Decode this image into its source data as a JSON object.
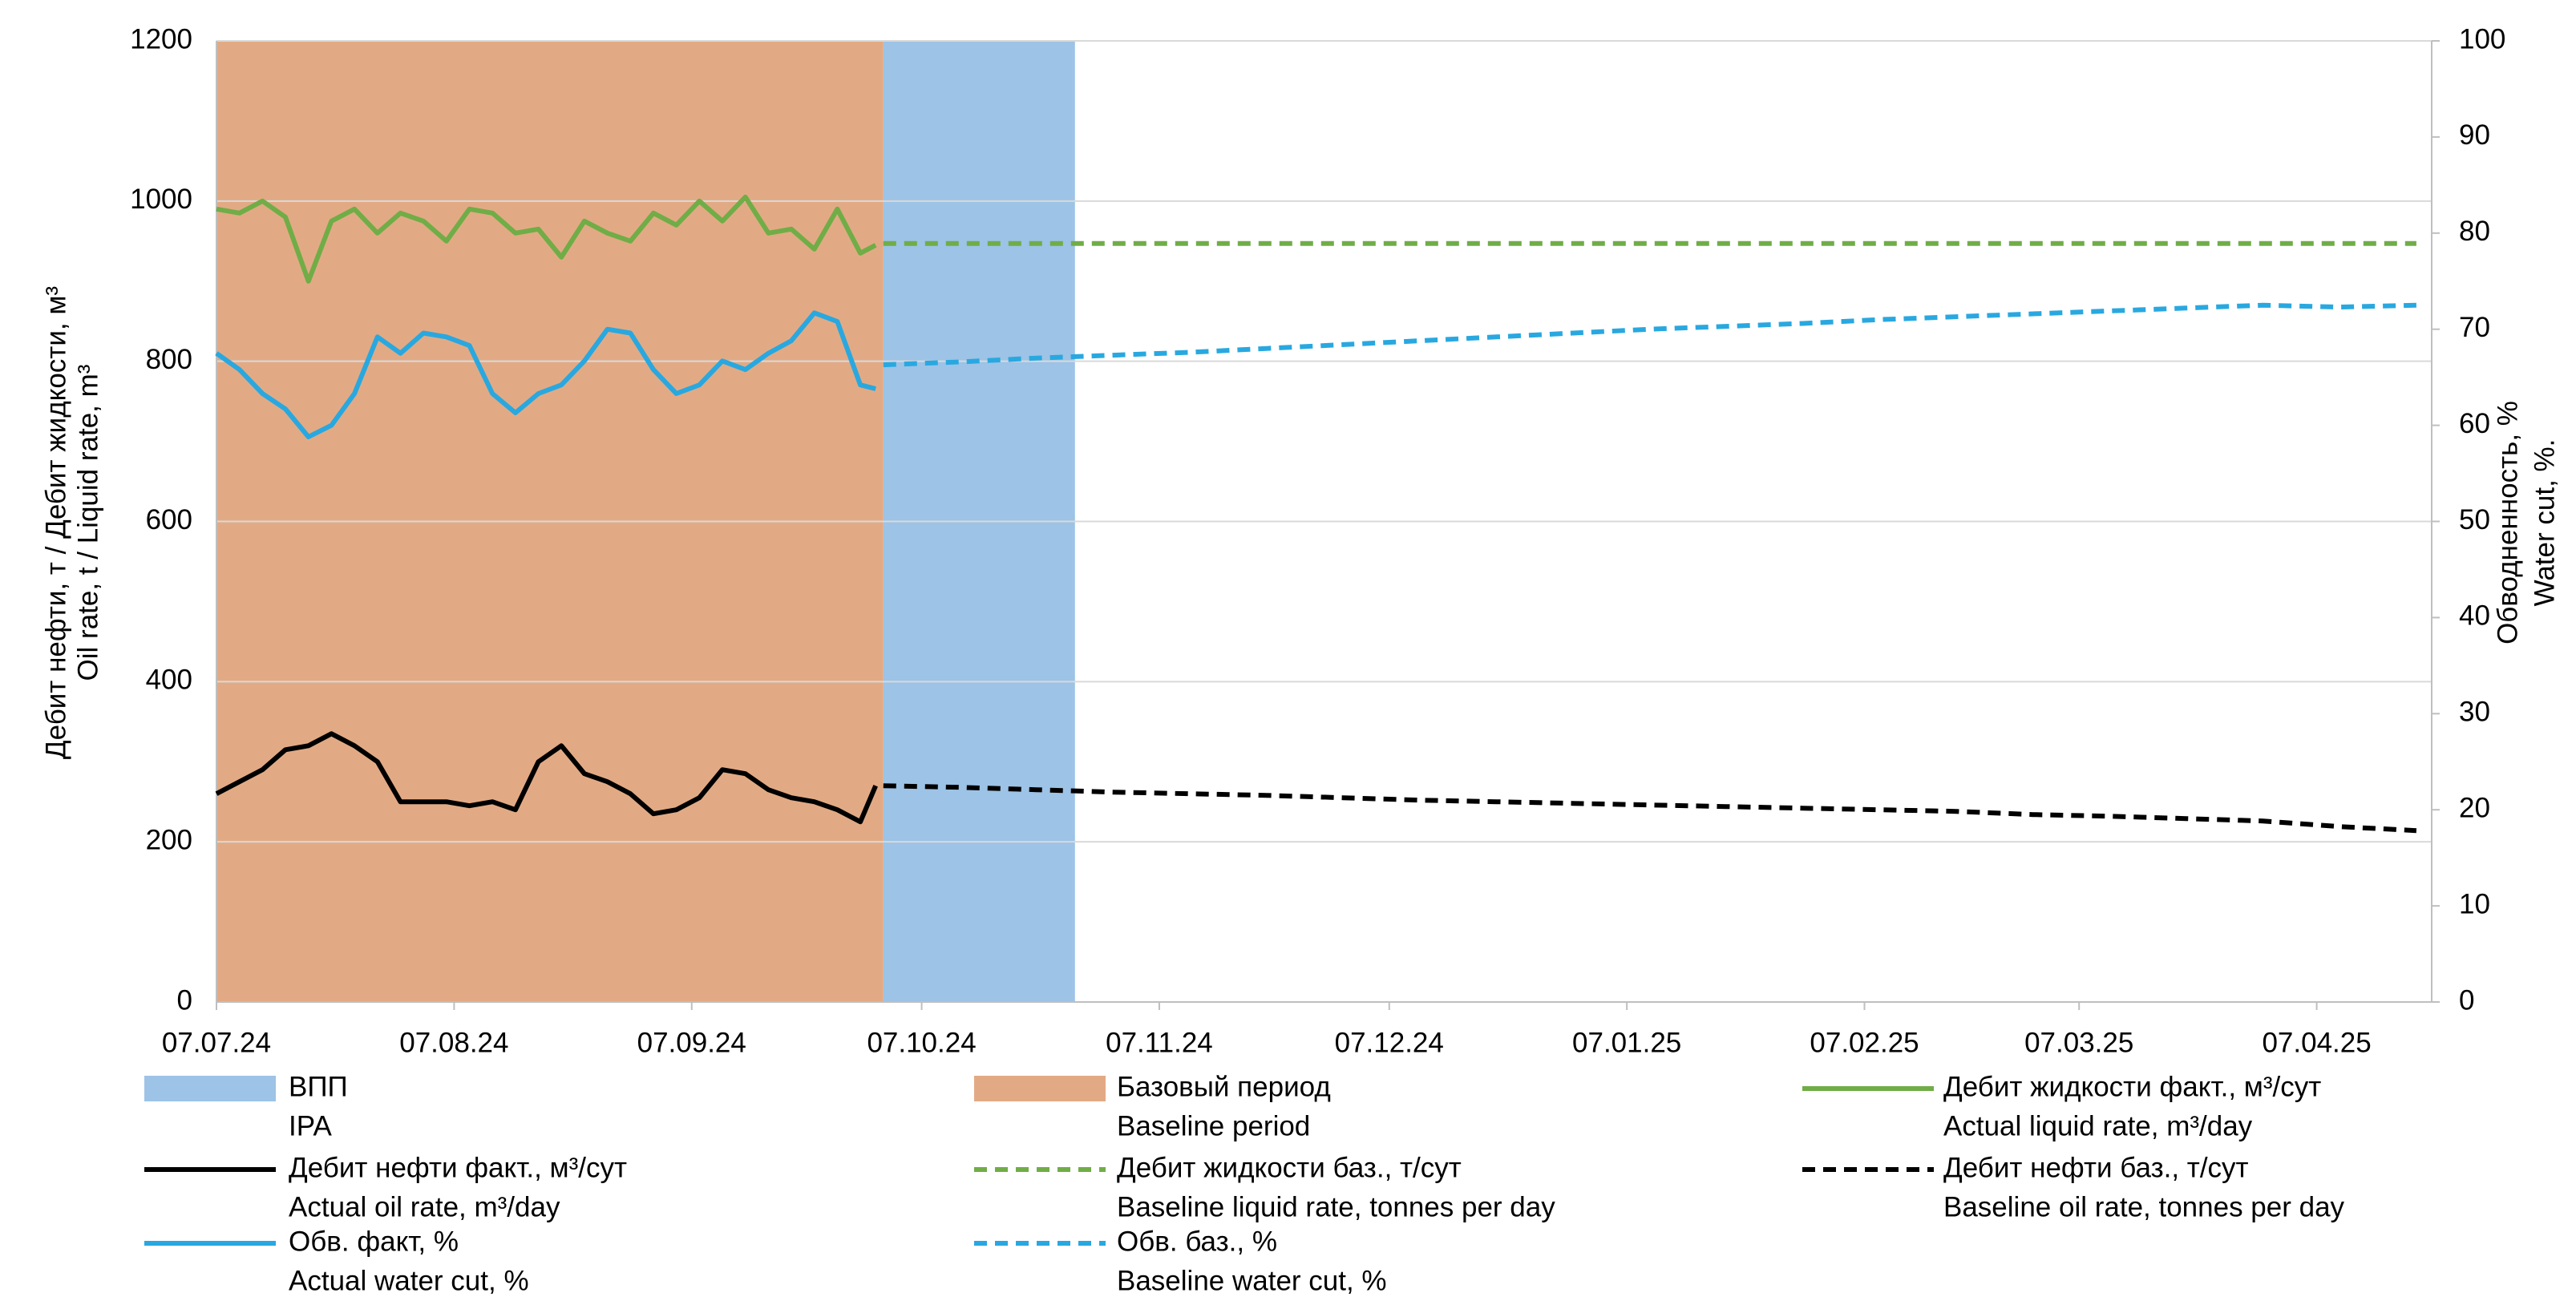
{
  "chart_data": {
    "type": "line",
    "y_title": [
      "Дебит нефти, т / Дебит жидкости, м³",
      "Oil rate, t / Liquid rate, m³"
    ],
    "y2_title": [
      "Обводненность, %",
      "Water cut, %."
    ],
    "xlim": [
      "2024-07-07",
      "2025-04-22"
    ],
    "xticks": [
      {
        "value": "2024-07-07",
        "label": "07.07.24"
      },
      {
        "value": "2024-08-07",
        "label": "07.08.24"
      },
      {
        "value": "2024-09-07",
        "label": "07.09.24"
      },
      {
        "value": "2024-10-07",
        "label": "07.10.24"
      },
      {
        "value": "2024-11-07",
        "label": "07.11.24"
      },
      {
        "value": "2024-12-07",
        "label": "07.12.24"
      },
      {
        "value": "2025-01-07",
        "label": "07.01.25"
      },
      {
        "value": "2025-02-07",
        "label": "07.02.25"
      },
      {
        "value": "2025-03-07",
        "label": "07.03.25"
      },
      {
        "value": "2025-04-07",
        "label": "07.04.25"
      }
    ],
    "ylim": [
      0,
      1200
    ],
    "yticks": [
      0,
      200,
      400,
      600,
      800,
      1000,
      1200
    ],
    "y2lim": [
      0,
      100
    ],
    "y2ticks": [
      0,
      10,
      20,
      30,
      40,
      50,
      60,
      70,
      80,
      90,
      100
    ],
    "grid": true,
    "spans": [
      {
        "name": "ВПП",
        "name_en": "IPA",
        "color": "#9dc3e6",
        "x": [
          "2024-10-02",
          "2024-10-27"
        ]
      },
      {
        "name": "Базовый период",
        "name_en": "Baseline period",
        "color": "#e2aa84",
        "x": [
          "2024-07-07",
          "2024-10-02"
        ]
      }
    ],
    "series": [
      {
        "name": "Дебит жидкости факт., м³/сут",
        "name_en": "Actual liquid rate, m³/day",
        "color": "#70ad47",
        "dashed": false,
        "x": [
          "2024-07-07",
          "2024-07-10",
          "2024-07-13",
          "2024-07-16",
          "2024-07-19",
          "2024-07-22",
          "2024-07-25",
          "2024-07-28",
          "2024-07-31",
          "2024-08-03",
          "2024-08-06",
          "2024-08-09",
          "2024-08-12",
          "2024-08-15",
          "2024-08-18",
          "2024-08-21",
          "2024-08-24",
          "2024-08-27",
          "2024-08-30",
          "2024-09-02",
          "2024-09-05",
          "2024-09-08",
          "2024-09-11",
          "2024-09-14",
          "2024-09-17",
          "2024-09-20",
          "2024-09-23",
          "2024-09-26",
          "2024-09-29",
          "2024-10-01"
        ],
        "values": [
          990,
          985,
          1000,
          980,
          900,
          975,
          990,
          960,
          985,
          975,
          950,
          990,
          985,
          960,
          965,
          930,
          975,
          960,
          950,
          985,
          970,
          1000,
          975,
          1005,
          960,
          965,
          940,
          990,
          935,
          945
        ]
      },
      {
        "name": "Дебит нефти факт., м³/сут",
        "name_en": "Actual oil rate, m³/day",
        "color": "#000000",
        "dashed": false,
        "x": [
          "2024-07-07",
          "2024-07-10",
          "2024-07-13",
          "2024-07-16",
          "2024-07-19",
          "2024-07-22",
          "2024-07-25",
          "2024-07-28",
          "2024-07-31",
          "2024-08-03",
          "2024-08-06",
          "2024-08-09",
          "2024-08-12",
          "2024-08-15",
          "2024-08-18",
          "2024-08-21",
          "2024-08-24",
          "2024-08-27",
          "2024-08-30",
          "2024-09-02",
          "2024-09-05",
          "2024-09-08",
          "2024-09-11",
          "2024-09-14",
          "2024-09-17",
          "2024-09-20",
          "2024-09-23",
          "2024-09-26",
          "2024-09-29",
          "2024-10-01"
        ],
        "values": [
          260,
          275,
          290,
          315,
          320,
          335,
          320,
          300,
          250,
          250,
          250,
          245,
          250,
          240,
          300,
          320,
          285,
          275,
          260,
          235,
          240,
          255,
          290,
          285,
          265,
          255,
          250,
          240,
          225,
          270
        ]
      },
      {
        "name": "Дебит жидкости баз., т/сут",
        "name_en": "Baseline liquid rate, tonnes per day",
        "color": "#70ad47",
        "dashed": true,
        "x": [
          "2024-10-02",
          "2024-10-12",
          "2024-10-22",
          "2024-11-01",
          "2024-11-11",
          "2024-11-21",
          "2024-12-01",
          "2024-12-11",
          "2024-12-21",
          "2024-12-31",
          "2025-01-10",
          "2025-01-20",
          "2025-01-30",
          "2025-02-09",
          "2025-02-19",
          "2025-03-01",
          "2025-03-11",
          "2025-03-21",
          "2025-03-31",
          "2025-04-10",
          "2025-04-20"
        ],
        "values": [
          947,
          947,
          947,
          947,
          947,
          947,
          947,
          947,
          947,
          947,
          947,
          947,
          947,
          947,
          947,
          947,
          947,
          947,
          947,
          947,
          947
        ]
      },
      {
        "name": "Дебит нефти баз., т/сут",
        "name_en": "Baseline oil rate, tonnes per day",
        "color": "#000000",
        "dashed": true,
        "x": [
          "2024-10-02",
          "2024-10-12",
          "2024-10-22",
          "2024-11-01",
          "2024-11-11",
          "2024-11-21",
          "2024-12-01",
          "2024-12-11",
          "2024-12-21",
          "2024-12-31",
          "2025-01-10",
          "2025-01-20",
          "2025-01-30",
          "2025-02-09",
          "2025-02-19",
          "2025-03-01",
          "2025-03-11",
          "2025-03-21",
          "2025-03-31",
          "2025-04-10",
          "2025-04-20"
        ],
        "values": [
          270,
          268,
          265,
          262,
          260,
          258,
          255,
          252,
          250,
          248,
          246,
          244,
          242,
          240,
          238,
          234,
          232,
          229,
          226,
          219,
          214
        ]
      },
      {
        "name": "Обв. факт, %",
        "name_en": "Actual water cut, %",
        "color": "#29a8e0",
        "dashed": false,
        "axis": "y2",
        "x": [
          "2024-07-07",
          "2024-07-10",
          "2024-07-13",
          "2024-07-16",
          "2024-07-19",
          "2024-07-22",
          "2024-07-25",
          "2024-07-28",
          "2024-07-31",
          "2024-08-03",
          "2024-08-06",
          "2024-08-09",
          "2024-08-12",
          "2024-08-15",
          "2024-08-18",
          "2024-08-21",
          "2024-08-24",
          "2024-08-27",
          "2024-08-30",
          "2024-09-02",
          "2024-09-05",
          "2024-09-08",
          "2024-09-11",
          "2024-09-14",
          "2024-09-17",
          "2024-09-20",
          "2024-09-23",
          "2024-09-26",
          "2024-09-29",
          "2024-10-01"
        ],
        "values": [
          67.5,
          65.8,
          63.3,
          61.7,
          58.8,
          60,
          63.3,
          69.2,
          67.5,
          69.6,
          69.2,
          68.3,
          63.3,
          61.3,
          63.3,
          64.2,
          66.7,
          70,
          69.6,
          65.8,
          63.3,
          64.2,
          66.7,
          65.8,
          67.5,
          68.8,
          71.7,
          70.8,
          64.2,
          63.8
        ]
      },
      {
        "name": "Обв. баз., %",
        "name_en": "Baseline water cut, %",
        "color": "#29a8e0",
        "dashed": true,
        "axis": "y2",
        "x": [
          "2024-10-02",
          "2024-10-12",
          "2024-10-22",
          "2024-11-01",
          "2024-11-11",
          "2024-11-21",
          "2024-12-01",
          "2024-12-11",
          "2024-12-21",
          "2024-12-31",
          "2025-01-10",
          "2025-01-20",
          "2025-01-30",
          "2025-02-09",
          "2025-02-19",
          "2025-03-01",
          "2025-03-11",
          "2025-03-21",
          "2025-03-31",
          "2025-04-10",
          "2025-04-20"
        ],
        "values": [
          66.3,
          66.6,
          67,
          67.3,
          67.6,
          68,
          68.4,
          68.8,
          69.2,
          69.6,
          70,
          70.3,
          70.6,
          71,
          71.3,
          71.6,
          71.9,
          72.2,
          72.5,
          72.3,
          72.5
        ]
      }
    ]
  }
}
